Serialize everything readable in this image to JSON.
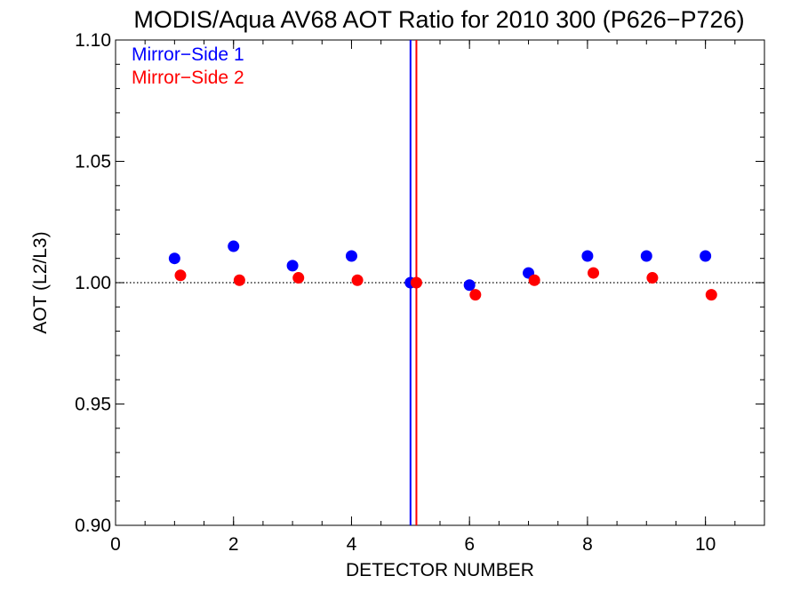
{
  "chart_data": {
    "type": "scatter",
    "title": "MODIS/Aqua AV68 AOT Ratio for 2010 300 (P626−P726)",
    "xlabel": "DETECTOR NUMBER",
    "ylabel": "AOT (L2/L3)",
    "xlim": [
      0,
      11
    ],
    "ylim": [
      0.9,
      1.1
    ],
    "x_ticks": [
      0,
      2,
      4,
      6,
      8,
      10
    ],
    "x_tick_labels": [
      "0",
      "2",
      "4",
      "6",
      "8",
      "10"
    ],
    "y_ticks": [
      0.9,
      0.95,
      1.0,
      1.05,
      1.1
    ],
    "y_tick_labels": [
      "0.90",
      "0.95",
      "1.00",
      "1.05",
      "1.10"
    ],
    "reference_line": {
      "y": 1.0,
      "style": "dotted"
    },
    "vertical_lines": [
      {
        "x": 5.0,
        "color": "#0000ff"
      },
      {
        "x": 5.1,
        "color": "#ff0000"
      }
    ],
    "legend_placement": "top-left",
    "series": [
      {
        "name": "Mirror−Side 1",
        "color": "#0000ff",
        "x": [
          1,
          2,
          3,
          4,
          5,
          6,
          7,
          8,
          9,
          10
        ],
        "y": [
          1.01,
          1.015,
          1.007,
          1.011,
          1.0,
          0.999,
          1.004,
          1.011,
          1.011,
          1.011
        ]
      },
      {
        "name": "Mirror−Side 2",
        "color": "#ff0000",
        "x": [
          1.1,
          2.1,
          3.1,
          4.1,
          5.1,
          6.1,
          7.1,
          8.1,
          9.1,
          10.1
        ],
        "y": [
          1.003,
          1.001,
          1.002,
          1.001,
          1.0,
          0.995,
          1.001,
          1.004,
          1.002,
          0.995
        ]
      }
    ]
  }
}
